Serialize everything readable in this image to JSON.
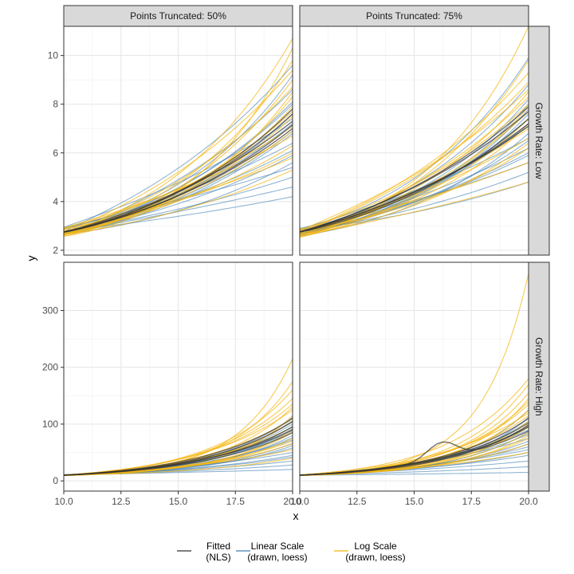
{
  "chart_data": {
    "type": "line",
    "xlabel": "x",
    "ylabel": "y",
    "x_range": [
      10,
      20
    ],
    "x_ticks": [
      10.0,
      12.5,
      15.0,
      17.5,
      20.0
    ],
    "x_tick_labels": [
      "10.0",
      "12.5",
      "15.0",
      "17.5",
      "20.0"
    ],
    "grid": true,
    "legend_position": "bottom",
    "column_strips": [
      "Points Truncated: 50%",
      "Points Truncated: 75%"
    ],
    "row_strips": [
      "Growth Rate: Low",
      "Growth Rate: High"
    ],
    "rows": [
      {
        "y_range": [
          1.8,
          11.2
        ],
        "y_ticks": [
          2,
          4,
          6,
          8,
          10
        ],
        "y_tick_labels": [
          "2",
          "4",
          "6",
          "8",
          "10"
        ]
      },
      {
        "y_range": [
          -18,
          385
        ],
        "y_ticks": [
          0,
          100,
          200,
          300
        ],
        "y_tick_labels": [
          "0",
          "100",
          "200",
          "300"
        ]
      }
    ],
    "panels": [
      {
        "row": 0,
        "col": 0,
        "fitted_start": 2.75,
        "fitted_end": [
          7.3,
          7.0,
          7.6,
          7.8,
          7.15
        ],
        "linear_end": [
          4.2,
          4.6,
          5.0,
          5.4,
          5.9,
          6.4,
          6.8,
          7.2,
          7.6,
          8.1,
          8.6,
          9.2,
          9.6,
          5.6,
          6.1,
          6.9,
          7.4,
          8.0
        ],
        "log_end": [
          5.3,
          5.8,
          6.3,
          6.7,
          7.1,
          7.5,
          7.9,
          8.3,
          8.7,
          9.0,
          9.4,
          9.8,
          10.3,
          10.7,
          6.0,
          6.9,
          7.7,
          8.5
        ]
      },
      {
        "row": 0,
        "col": 1,
        "fitted_start": 2.75,
        "fitted_end": [
          7.4,
          7.1,
          7.7,
          7.9,
          7.2
        ],
        "linear_end": [
          4.8,
          5.2,
          5.6,
          5.9,
          6.2,
          6.5,
          6.8,
          7.1,
          7.4,
          7.8,
          8.2,
          8.8,
          9.9,
          6.0,
          6.6,
          7.2,
          7.6,
          8.0
        ],
        "log_end": [
          4.8,
          5.6,
          6.2,
          6.6,
          7.0,
          7.4,
          7.7,
          8.0,
          8.3,
          8.6,
          8.9,
          9.3,
          9.8,
          11.2,
          6.4,
          7.2,
          7.9,
          8.5
        ]
      },
      {
        "row": 1,
        "col": 0,
        "fitted_start": 10,
        "fitted_end": [
          95,
          85,
          105,
          110,
          90
        ],
        "linear_end": [
          20,
          28,
          35,
          42,
          50,
          58,
          66,
          72,
          80,
          88,
          96,
          104,
          112,
          45,
          62,
          76,
          92,
          100
        ],
        "log_end": [
          40,
          55,
          65,
          75,
          85,
          95,
          105,
          115,
          125,
          135,
          145,
          160,
          175,
          215,
          70,
          90,
          110,
          130
        ]
      },
      {
        "row": 1,
        "col": 1,
        "fitted_start": 10,
        "fitted_end": [
          95,
          88,
          102,
          110,
          98
        ],
        "linear_end": [
          15,
          25,
          35,
          45,
          55,
          65,
          75,
          82,
          90,
          98,
          105,
          112,
          125,
          50,
          60,
          70,
          86,
          95
        ],
        "log_end": [
          50,
          65,
          75,
          85,
          95,
          105,
          115,
          125,
          135,
          145,
          155,
          170,
          180,
          365,
          80,
          100,
          120,
          140
        ]
      }
    ],
    "series": [
      {
        "name": "Fitted\n(NLS)",
        "color": "#333333"
      },
      {
        "name": "Linear Scale\n(drawn, loess)",
        "color": "#4682B4"
      },
      {
        "name": "Log Scale\n(drawn, loess)",
        "color": "#F5B50E"
      }
    ]
  }
}
